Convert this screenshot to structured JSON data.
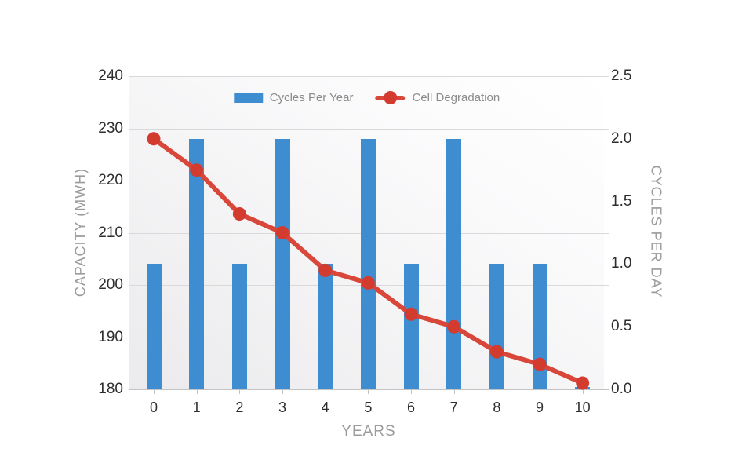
{
  "chart_data": {
    "type": "combo-bar-line",
    "title": "",
    "x_axis": {
      "label": "YEARS",
      "ticks": [
        "0",
        "1",
        "2",
        "3",
        "4",
        "5",
        "6",
        "7",
        "8",
        "9",
        "10"
      ]
    },
    "left_axis": {
      "label": "CAPACITY (MWH)",
      "min": 180,
      "max": 240,
      "tick_step": 10,
      "ticks": [
        "240",
        "230",
        "220",
        "210",
        "200",
        "190",
        "180"
      ]
    },
    "right_axis": {
      "label": "CYCLES PER DAY",
      "min": 0,
      "max": 2.5,
      "tick_step": 0.5,
      "ticks": [
        "2.5",
        "2.0",
        "1.5",
        "1.0",
        "0.5",
        "0.0"
      ]
    },
    "grid": true,
    "legend_position": "top-center",
    "series": [
      {
        "name": "Cycles Per Year",
        "type": "bar",
        "axis": "left",
        "color": "#3e8dd0",
        "values": [
          204,
          228,
          204,
          228,
          204,
          228,
          204,
          228,
          204,
          204,
          180.5
        ]
      },
      {
        "name": "Cell Degradation",
        "type": "line",
        "axis": "right",
        "color": "#d8473a",
        "marker_color": "#d23b2e",
        "values": [
          2.0,
          1.75,
          1.4,
          1.25,
          0.95,
          0.85,
          0.6,
          0.5,
          0.3,
          0.2,
          0.05
        ]
      }
    ]
  },
  "colors": {
    "background": "#ffffff",
    "plot_bg_gray": "#ebebed",
    "gridline": "#d9d9db",
    "axis_line": "#c3c3c5",
    "tick_label": "#2d2d2d",
    "axis_title": "#9b9b9b",
    "legend_text": "#8a8a8a"
  }
}
